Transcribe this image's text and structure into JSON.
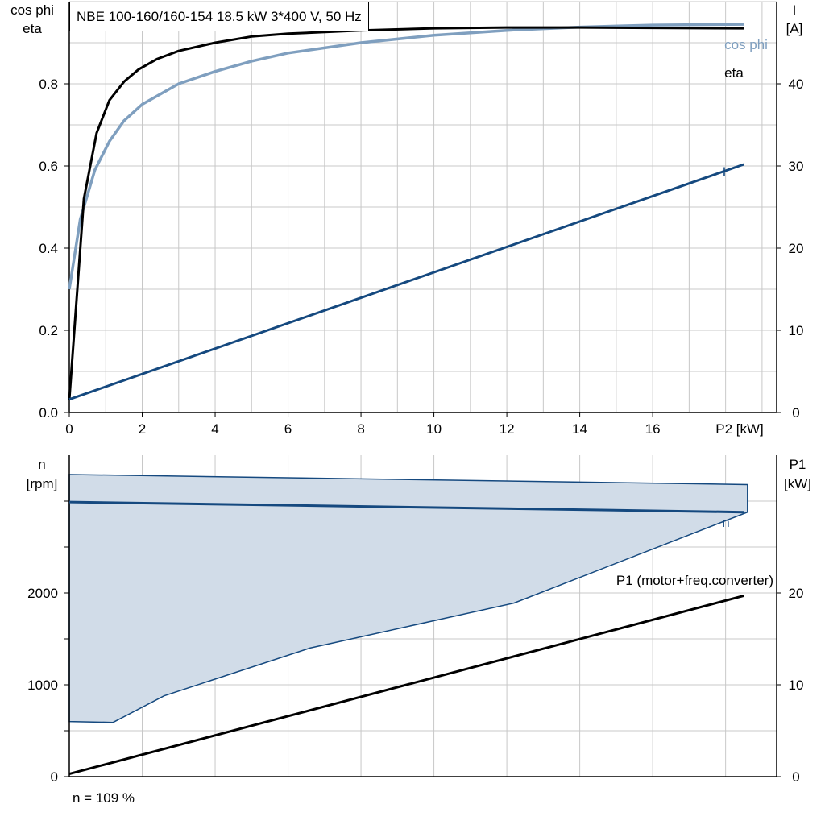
{
  "title": "NBE 100-160/160-154   18.5 kW   3*400 V, 50 Hz",
  "footnote": "n = 109 %",
  "colors": {
    "grid": "#c8c8c8",
    "axis": "#000000",
    "eta": "#000000",
    "cos_phi": "#7f9fbf",
    "current": "#15497f",
    "speed": "#15497f",
    "speed_band_fill": "#d1dce8",
    "p1": "#000000"
  },
  "chart_data": [
    {
      "type": "line",
      "xlabel": "P2 [kW]",
      "x_ticks": [
        "0",
        "2",
        "4",
        "6",
        "8",
        "10",
        "12",
        "14",
        "16"
      ],
      "xlim": [
        0,
        19.4
      ],
      "left_axis": {
        "label": [
          "cos phi",
          "eta"
        ],
        "ticks": [
          "0.0",
          "0.2",
          "0.4",
          "0.6",
          "0.8"
        ],
        "ylim": [
          0,
          1.0
        ]
      },
      "right_axis": {
        "label": [
          "I",
          "[A]"
        ],
        "ticks": [
          "0",
          "10",
          "20",
          "30",
          "40"
        ],
        "ylim": [
          0,
          50
        ]
      },
      "grid": true,
      "series": [
        {
          "name": "eta",
          "axis": "left",
          "x": [
            0,
            0.4,
            0.75,
            1.1,
            1.5,
            1.9,
            2.4,
            3,
            4,
            5,
            6,
            8,
            10,
            12,
            14,
            16,
            18.5
          ],
          "y": [
            0.03,
            0.52,
            0.68,
            0.76,
            0.805,
            0.835,
            0.86,
            0.88,
            0.9,
            0.915,
            0.922,
            0.93,
            0.935,
            0.937,
            0.937,
            0.936,
            0.935
          ]
        },
        {
          "name": "cos phi",
          "axis": "left",
          "x": [
            0,
            0.3,
            0.7,
            1.1,
            1.5,
            2,
            3,
            4,
            5,
            6,
            8,
            10,
            12,
            14,
            16,
            18.5
          ],
          "y": [
            0.3,
            0.47,
            0.59,
            0.66,
            0.71,
            0.75,
            0.8,
            0.83,
            0.855,
            0.875,
            0.9,
            0.918,
            0.93,
            0.938,
            0.943,
            0.945
          ]
        },
        {
          "name": "I",
          "axis": "right",
          "x": [
            0,
            18.5
          ],
          "y": [
            1.6,
            30.2
          ]
        }
      ]
    },
    {
      "type": "area",
      "xlim": [
        0,
        19.4
      ],
      "left_axis": {
        "label": [
          "n",
          "[rpm]"
        ],
        "ticks": [
          "0",
          "1000",
          "2000"
        ],
        "ylim": [
          0,
          3300
        ]
      },
      "right_axis": {
        "label": [
          "P1",
          "[kW]"
        ],
        "ticks": [
          "0",
          "10",
          "20"
        ],
        "ylim": [
          0,
          33
        ]
      },
      "grid": true,
      "speed_range": {
        "x_upper": [
          0,
          18.6
        ],
        "upper_rpm": [
          3290,
          3180
        ],
        "x_lower": [
          0,
          1.2,
          2.6,
          6.6,
          12.2,
          18.6
        ],
        "lower_rpm": [
          600,
          590,
          880,
          1400,
          1890,
          2880
        ]
      },
      "series": [
        {
          "name": "n",
          "axis": "left",
          "x": [
            0,
            18.5
          ],
          "y": [
            2990,
            2880
          ]
        },
        {
          "name": "P1 (motor+freq.converter)",
          "axis": "right",
          "x": [
            0,
            18.5
          ],
          "y": [
            0.3,
            19.7
          ]
        }
      ]
    }
  ]
}
